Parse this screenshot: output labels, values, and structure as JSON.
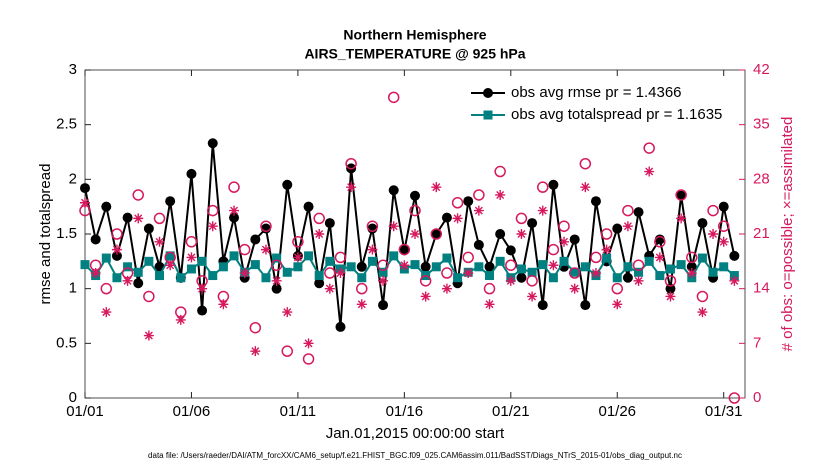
{
  "chart_data": {
    "type": "line",
    "title": [
      "Northern Hemisphere",
      "AIRS_TEMPERATURE @ 925 hPa"
    ],
    "xlabel": "Jan.01,2015 00:00:00 start",
    "ylabel": "rmse and totalspread",
    "y2label": "# of obs: o=possible; ×=assimilated",
    "footer": "data file: /Users/raeder/DAI/ATM_forcXX/CAM6_setup/f.e21.FHIST_BGC.f09_025.CAM6assim.011/BadSST/Diags_NTrS_2015-01/obs_diag_output.nc",
    "xlim": [
      1,
      32
    ],
    "xticks": [
      {
        "value": 1,
        "label": "01/01"
      },
      {
        "value": 6,
        "label": "01/06"
      },
      {
        "value": 11,
        "label": "01/11"
      },
      {
        "value": 16,
        "label": "01/16"
      },
      {
        "value": 21,
        "label": "01/21"
      },
      {
        "value": 26,
        "label": "01/26"
      },
      {
        "value": 31,
        "label": "01/31"
      }
    ],
    "ylim": [
      0,
      3
    ],
    "yticks": [
      0,
      0.5,
      1,
      1.5,
      2,
      2.5,
      3
    ],
    "y2lim": [
      0,
      42
    ],
    "y2ticks": [
      0,
      7,
      14,
      21,
      28,
      35,
      42
    ],
    "y2color": "#d6195e",
    "legend": "upper right",
    "x": [
      1,
      1.5,
      2,
      2.5,
      3,
      3.5,
      4,
      4.5,
      5,
      5.5,
      6,
      6.5,
      7,
      7.5,
      8,
      8.5,
      9,
      9.5,
      10,
      10.5,
      11,
      11.5,
      12,
      12.5,
      13,
      13.5,
      14,
      14.5,
      15,
      15.5,
      16,
      16.5,
      17,
      17.5,
      18,
      18.5,
      19,
      19.5,
      20,
      20.5,
      21,
      21.5,
      22,
      22.5,
      23,
      23.5,
      24,
      24.5,
      25,
      25.5,
      26,
      26.5,
      27,
      27.5,
      28,
      28.5,
      29,
      29.5,
      30,
      30.5,
      31,
      31.5
    ],
    "series": [
      {
        "name": "obs avg rmse pr = 1.4366",
        "color": "#000000",
        "marker": "circle",
        "line": true,
        "values": [
          1.92,
          1.45,
          1.75,
          1.3,
          1.65,
          1.05,
          1.55,
          1.2,
          1.8,
          1.1,
          2.05,
          0.8,
          2.33,
          1.25,
          1.65,
          1.1,
          1.45,
          1.55,
          1.0,
          1.95,
          1.3,
          1.75,
          1.05,
          1.6,
          0.65,
          2.1,
          1.2,
          1.55,
          0.85,
          1.9,
          1.35,
          1.85,
          1.2,
          1.5,
          1.65,
          1.05,
          1.8,
          1.4,
          1.2,
          1.5,
          1.35,
          1.1,
          1.6,
          0.85,
          1.95,
          1.2,
          1.45,
          0.85,
          1.8,
          1.25,
          1.55,
          1.1,
          1.7,
          1.3,
          1.45,
          1.0,
          1.85,
          1.2,
          1.6,
          1.1,
          1.75,
          1.3
        ]
      },
      {
        "name": "obs avg totalspread pr = 1.1635",
        "color": "#008080",
        "marker": "square",
        "line": true,
        "values": [
          1.22,
          1.12,
          1.28,
          1.1,
          1.2,
          1.15,
          1.25,
          1.12,
          1.3,
          1.1,
          1.18,
          1.25,
          1.12,
          1.2,
          1.3,
          1.15,
          1.22,
          1.1,
          1.28,
          1.15,
          1.2,
          1.3,
          1.12,
          1.25,
          1.18,
          1.2,
          1.1,
          1.25,
          1.15,
          1.3,
          1.18,
          1.22,
          1.12,
          1.2,
          1.28,
          1.1,
          1.15,
          1.2,
          1.12,
          1.25,
          1.1,
          1.18,
          1.15,
          1.22,
          1.1,
          1.25,
          1.15,
          1.2,
          1.12,
          1.28,
          1.1,
          1.2,
          1.15,
          1.25,
          1.12,
          1.18,
          1.22,
          1.1,
          1.28,
          1.15,
          1.2,
          1.12
        ]
      },
      {
        "color": "#d6195e",
        "marker": "open-circle",
        "line": false,
        "axis": "y2",
        "values": [
          24,
          17,
          14,
          21,
          16,
          26,
          13,
          23,
          18,
          11,
          20,
          15,
          24,
          13,
          27,
          19,
          9,
          22,
          17,
          6,
          20,
          5,
          23,
          16,
          18,
          30,
          14,
          22,
          17,
          38.5,
          19,
          24,
          15,
          21,
          16,
          25,
          18,
          26,
          14,
          29,
          17,
          23,
          15,
          27,
          19,
          22,
          16,
          30,
          18,
          21,
          14,
          24,
          17,
          32,
          20,
          15,
          26,
          18,
          13,
          24,
          22,
          0
        ]
      },
      {
        "color": "#d6195e",
        "marker": "asterisk",
        "line": false,
        "axis": "y2",
        "values": [
          25,
          16,
          11,
          19,
          15,
          23,
          8,
          20,
          17,
          10,
          18,
          14,
          22,
          12,
          24,
          16,
          6,
          19,
          15,
          11,
          18,
          7,
          21,
          14,
          16,
          27,
          12,
          19,
          15,
          22,
          17,
          21,
          13,
          27,
          14,
          23,
          16,
          24,
          12,
          26,
          15,
          21,
          13,
          24,
          17,
          20,
          14,
          27,
          16,
          19,
          12,
          22,
          15,
          29,
          18,
          13,
          23,
          16,
          11,
          21,
          20,
          15
        ]
      }
    ]
  }
}
